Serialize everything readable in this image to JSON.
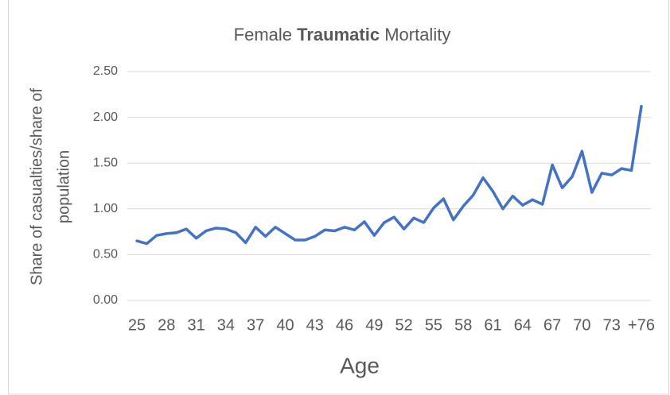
{
  "chart_data": {
    "type": "line",
    "title": [
      "Female ",
      "Traumatic",
      " Mortality"
    ],
    "xlabel": "Age",
    "ylabel": [
      "Share of casualties/share of",
      "population"
    ],
    "categories": [
      "25",
      null,
      null,
      "28",
      null,
      null,
      "31",
      null,
      null,
      "34",
      null,
      null,
      "37",
      null,
      null,
      "40",
      null,
      null,
      "43",
      null,
      null,
      "46",
      null,
      null,
      "49",
      null,
      null,
      "52",
      null,
      null,
      "55",
      null,
      null,
      "58",
      null,
      null,
      "61",
      null,
      null,
      "64",
      null,
      null,
      "67",
      null,
      null,
      "70",
      null,
      null,
      "73",
      null,
      null,
      "+76"
    ],
    "values": [
      0.65,
      0.62,
      0.71,
      0.73,
      0.74,
      0.78,
      0.68,
      0.76,
      0.79,
      0.78,
      0.74,
      0.63,
      0.8,
      0.7,
      0.8,
      0.73,
      0.66,
      0.66,
      0.7,
      0.77,
      0.76,
      0.8,
      0.77,
      0.86,
      0.71,
      0.85,
      0.91,
      0.78,
      0.9,
      0.85,
      1.01,
      1.11,
      0.88,
      1.03,
      1.15,
      1.34,
      1.19,
      1.0,
      1.14,
      1.04,
      1.1,
      1.05,
      1.48,
      1.23,
      1.35,
      1.63,
      1.18,
      1.39,
      1.37,
      1.44,
      1.42,
      2.12
    ],
    "color": "#4472c4",
    "ylim": [
      0,
      2.5
    ],
    "yticks": [
      {
        "value": 0,
        "label": "0.00"
      },
      {
        "value": 0.5,
        "label": "0.50"
      },
      {
        "value": 1,
        "label": "1.00"
      },
      {
        "value": 1.5,
        "label": "1.50"
      },
      {
        "value": 2,
        "label": "2.00"
      },
      {
        "value": 2.5,
        "label": "2.50"
      }
    ],
    "grid": true
  }
}
